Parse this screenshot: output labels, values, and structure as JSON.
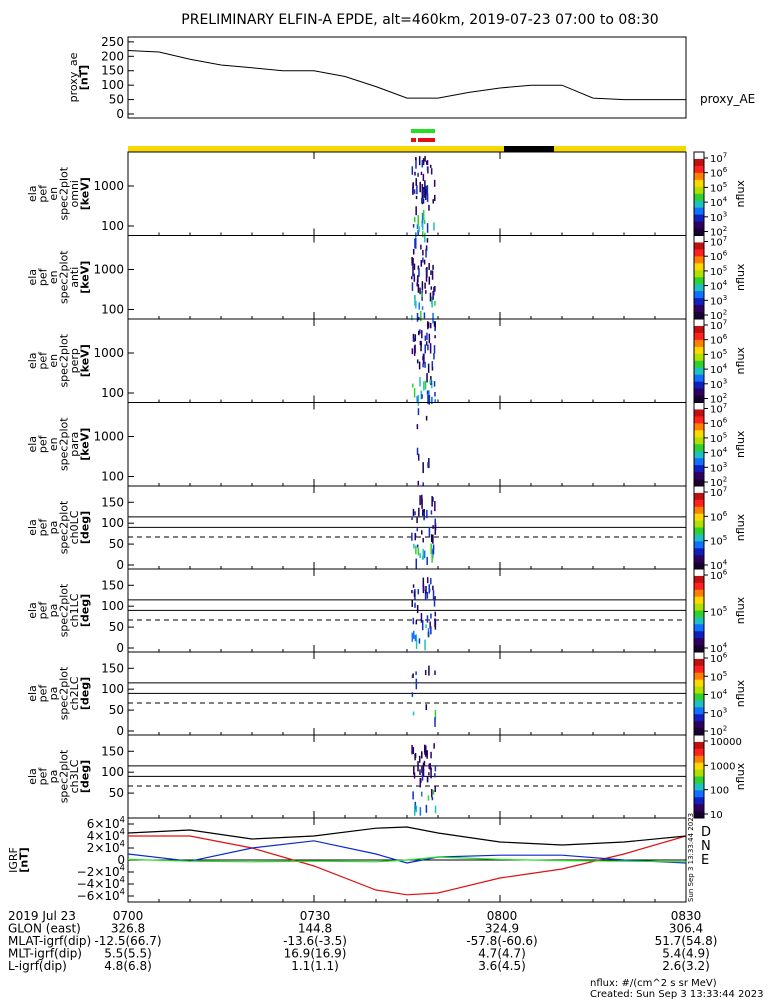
{
  "title": "PRELIMINARY ELFIN-A EPDE, alt=460km, 2019-07-23 07:00 to 08:30",
  "colors": {
    "yellow": "#f5d800",
    "green": "#22e022",
    "red": "#e01010",
    "black": "#000000",
    "blue": "#0a2ad0",
    "ae": "#000000"
  },
  "ae_panel": {
    "ylabel_lines": [
      "proxy_ae",
      "[nT]"
    ],
    "yticks": [
      "250",
      "200",
      "150",
      "100",
      "50",
      "0"
    ],
    "series_name": "proxy_AE"
  },
  "spectra_panels": [
    {
      "ylabel_lines": [
        "ela",
        "pef",
        "en",
        "spec2plot",
        "omni",
        "[keV]"
      ],
      "yticks": [
        "1000",
        "100"
      ],
      "cb_ticks": [
        "10^7",
        "10^6",
        "10^5",
        "10^4",
        "10^3",
        "10^2"
      ],
      "cb_label": "nflux"
    },
    {
      "ylabel_lines": [
        "ela",
        "pef",
        "en",
        "spec2plot",
        "anti",
        "[keV]"
      ],
      "yticks": [
        "1000",
        "100"
      ],
      "cb_ticks": [
        "10^7",
        "10^6",
        "10^5",
        "10^4",
        "10^3",
        "10^2"
      ],
      "cb_label": "nflux"
    },
    {
      "ylabel_lines": [
        "ela",
        "pef",
        "en",
        "spec2plot",
        "perp",
        "[keV]"
      ],
      "yticks": [
        "1000",
        "100"
      ],
      "cb_ticks": [
        "10^7",
        "10^6",
        "10^5",
        "10^4",
        "10^3",
        "10^2"
      ],
      "cb_label": "nflux"
    },
    {
      "ylabel_lines": [
        "ela",
        "pef",
        "en",
        "spec2plot",
        "para",
        "[keV]"
      ],
      "yticks": [
        "1000",
        "100"
      ],
      "cb_ticks": [
        "10^7",
        "10^6",
        "10^5",
        "10^4",
        "10^3",
        "10^2"
      ],
      "cb_label": "nflux"
    }
  ],
  "pa_panels": [
    {
      "ylabel_lines": [
        "ela",
        "pef",
        "pa",
        "spec2plot",
        "ch0LC",
        "[deg]"
      ],
      "yticks": [
        "150",
        "100",
        "50",
        "0"
      ],
      "cb_ticks": [
        "10^7",
        "10^6",
        "10^5",
        "10^4"
      ],
      "cb_label": "nflux"
    },
    {
      "ylabel_lines": [
        "ela",
        "pef",
        "pa",
        "spec2plot",
        "ch1LC",
        "[deg]"
      ],
      "yticks": [
        "150",
        "100",
        "50",
        "0"
      ],
      "cb_ticks": [
        "10^6",
        "10^5",
        "10^4"
      ],
      "cb_label": "nflux"
    },
    {
      "ylabel_lines": [
        "ela",
        "pef",
        "pa",
        "spec2plot",
        "ch2LC",
        "[deg]"
      ],
      "yticks": [
        "150",
        "100",
        "50",
        "0"
      ],
      "cb_ticks": [
        "10^6",
        "10^5",
        "10^4",
        "10^3",
        "10^2"
      ],
      "cb_label": "nflux"
    },
    {
      "ylabel_lines": [
        "ela",
        "pef",
        "pa",
        "spec2plot",
        "ch3LC",
        "[deg]"
      ],
      "yticks": [
        "150",
        "100",
        "50"
      ],
      "cb_ticks": [
        "10000",
        "1000",
        "100",
        "10"
      ],
      "cb_label": "nflux"
    }
  ],
  "igrf_panel": {
    "ylabel_lines": [
      "IGRF",
      "[nT]"
    ],
    "yticks": [
      "6×10^4",
      "4×10^4",
      "2×10^4",
      "0",
      "−2×10^4",
      "−4×10^4",
      "−6×10^4"
    ],
    "legend": [
      "D",
      "N",
      "E"
    ],
    "side_text": "Sun Sep  3 13:33:44 2023"
  },
  "footer": {
    "rows": [
      [
        "2019 Jul 23",
        "0700",
        "0730",
        "0800",
        "0830"
      ],
      [
        "GLON (east)",
        "326.8",
        "144.8",
        "324.9",
        "306.4"
      ],
      [
        "MLAT-igrf(dip)",
        "-12.5(66.7)",
        "-13.6(-3.5)",
        "-57.8(-60.6)",
        "51.7(54.8)"
      ],
      [
        "MLT-igrf(dip)",
        "5.5(5.5)",
        "16.9(16.9)",
        "4.7(4.7)",
        "5.4(4.9)"
      ],
      [
        "L-igrf(dip)",
        "4.8(6.8)",
        "1.1(1.1)",
        "3.6(4.5)",
        "2.6(3.2)"
      ]
    ],
    "note1": "nflux: #/(cm^2 s sr MeV)",
    "note2": "Created: Sun Sep  3 13:33:44 2023"
  },
  "chart_data": {
    "type": "line",
    "title": "PRELIMINARY ELFIN-A EPDE, alt=460km, 2019-07-23 07:00 to 08:30",
    "x_ticks": [
      "0700",
      "0730",
      "0800",
      "0830"
    ],
    "proxy_ae": {
      "x_min": [
        0,
        5,
        10,
        15,
        20,
        25,
        30,
        35,
        40,
        45,
        50,
        55,
        60,
        65,
        70,
        75,
        80,
        85,
        90
      ],
      "y_nT": [
        220,
        215,
        190,
        170,
        160,
        150,
        150,
        130,
        95,
        55,
        55,
        75,
        90,
        100,
        100,
        55,
        50,
        50,
        50
      ],
      "ylim": [
        0,
        260
      ]
    },
    "igrf": {
      "ylim": [
        -65000,
        65000
      ],
      "x_min": [
        0,
        10,
        20,
        30,
        40,
        45,
        50,
        60,
        70,
        80,
        90
      ],
      "series": [
        {
          "name": "D",
          "values": [
            40000,
            40000,
            20000,
            -10000,
            -50000,
            -58000,
            -55000,
            -30000,
            -15000,
            10000,
            40000
          ]
        },
        {
          "name": "N",
          "values": [
            10000,
            -2000,
            20000,
            32000,
            10000,
            -5000,
            5000,
            8000,
            8000,
            0,
            -5000
          ]
        },
        {
          "name": "E",
          "values": [
            1000,
            -2000,
            -3000,
            -2000,
            -3000,
            0,
            5000,
            1000,
            -1000,
            -2000,
            -3000
          ]
        },
        {
          "name": "total",
          "values": [
            45000,
            50000,
            35000,
            40000,
            53000,
            55000,
            45000,
            30000,
            25000,
            30000,
            40000
          ]
        }
      ]
    }
  }
}
